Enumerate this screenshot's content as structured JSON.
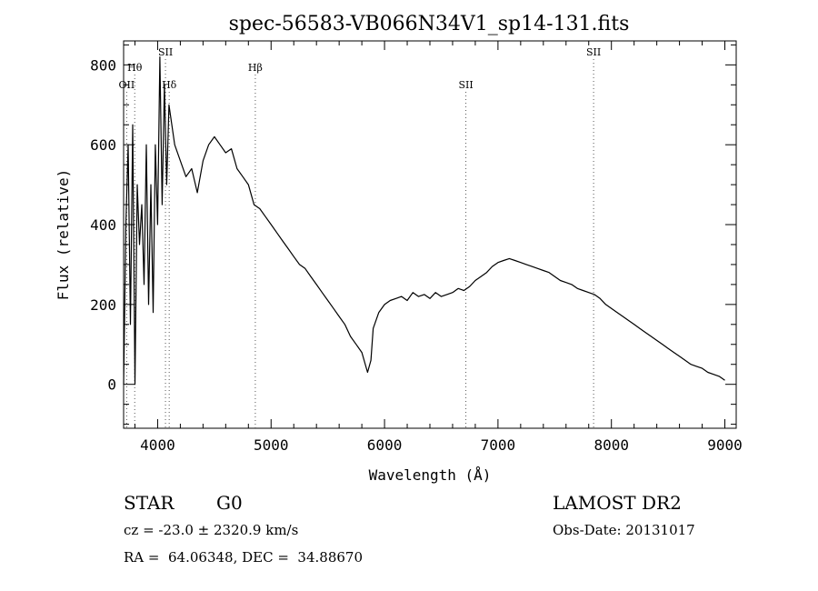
{
  "chart_data": {
    "type": "line",
    "title": "spec-56583-VB066N34V1_sp14-131.fits",
    "xlabel": "Wavelength (Å)",
    "ylabel": "Flux (relative)",
    "xlim": [
      3700,
      9100
    ],
    "ylim": [
      -110,
      860
    ],
    "x_ticks": [
      4000,
      5000,
      6000,
      7000,
      8000,
      9000
    ],
    "x_tick_labels": [
      "4000",
      "5000",
      "6000",
      "7000",
      "8000",
      "9000"
    ],
    "y_ticks": [
      0,
      200,
      400,
      600,
      800
    ],
    "y_tick_labels": [
      "0",
      "200",
      "400",
      "600",
      "800"
    ],
    "grid": false,
    "series": [
      {
        "name": "spectrum",
        "x": [
          3700,
          3720,
          3740,
          3760,
          3780,
          3800,
          3820,
          3840,
          3860,
          3880,
          3900,
          3920,
          3940,
          3960,
          3980,
          4000,
          4020,
          4040,
          4060,
          4080,
          4100,
          4150,
          4200,
          4250,
          4300,
          4350,
          4400,
          4450,
          4500,
          4550,
          4600,
          4650,
          4700,
          4750,
          4800,
          4850,
          4900,
          4950,
          5000,
          5050,
          5100,
          5150,
          5200,
          5250,
          5300,
          5350,
          5400,
          5450,
          5500,
          5550,
          5600,
          5650,
          5700,
          5750,
          5800,
          5850,
          5880,
          5900,
          5950,
          6000,
          6050,
          6100,
          6150,
          6200,
          6250,
          6300,
          6350,
          6400,
          6450,
          6500,
          6550,
          6600,
          6650,
          6700,
          6750,
          6800,
          6850,
          6900,
          6950,
          7000,
          7050,
          7100,
          7150,
          7200,
          7250,
          7300,
          7350,
          7400,
          7450,
          7500,
          7550,
          7600,
          7650,
          7700,
          7750,
          7800,
          7850,
          7900,
          7950,
          8000,
          8050,
          8100,
          8150,
          8200,
          8250,
          8300,
          8350,
          8400,
          8450,
          8500,
          8550,
          8600,
          8650,
          8700,
          8750,
          8800,
          8850,
          8900,
          8950,
          9000
        ],
        "y": [
          0,
          400,
          600,
          150,
          650,
          0,
          500,
          350,
          450,
          250,
          600,
          200,
          500,
          180,
          600,
          400,
          820,
          450,
          750,
          500,
          700,
          600,
          560,
          520,
          540,
          480,
          560,
          600,
          620,
          600,
          580,
          590,
          540,
          520,
          500,
          450,
          440,
          420,
          400,
          380,
          360,
          340,
          320,
          300,
          290,
          270,
          250,
          230,
          210,
          190,
          170,
          150,
          120,
          100,
          80,
          30,
          60,
          140,
          180,
          200,
          210,
          215,
          220,
          210,
          230,
          220,
          225,
          215,
          230,
          220,
          225,
          230,
          240,
          235,
          245,
          260,
          270,
          280,
          295,
          305,
          310,
          315,
          310,
          305,
          300,
          295,
          290,
          285,
          280,
          270,
          260,
          255,
          250,
          240,
          235,
          230,
          225,
          215,
          200,
          190,
          180,
          170,
          160,
          150,
          140,
          130,
          120,
          110,
          100,
          90,
          80,
          70,
          60,
          50,
          45,
          40,
          30,
          25,
          20,
          10
        ]
      }
    ],
    "lines": [
      {
        "label": "OII",
        "x": 3727,
        "label_row": 2
      },
      {
        "label": "Hθ",
        "x": 3798,
        "label_row": 1
      },
      {
        "label": "SII",
        "x": 4069,
        "label_row": 0
      },
      {
        "label": "Hδ",
        "x": 4102,
        "label_row": 2
      },
      {
        "label": "Hβ",
        "x": 4861,
        "label_row": 1
      },
      {
        "label": "SII",
        "x": 6717,
        "label_row": 2
      },
      {
        "label": "SII",
        "x": 7843,
        "label_row": 0
      }
    ]
  },
  "info": {
    "object_class": "STAR",
    "subclass": "G0",
    "survey": "LAMOST DR2",
    "redshift": "cz = -23.0 ± 2320.9 km/s",
    "obs_date": "Obs-Date: 20131017",
    "coords": "RA =  64.06348, DEC =  34.88670"
  },
  "colors": {
    "line": "#000000",
    "background": "#ffffff",
    "marker_line": "#555555"
  }
}
